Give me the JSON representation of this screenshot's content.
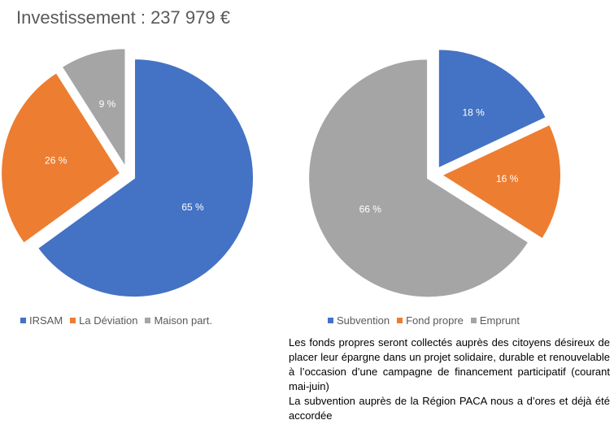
{
  "title": "Investissement : 237 979 €",
  "chart_data": [
    {
      "type": "pie",
      "categories": [
        "IRSAM",
        "La Déviation",
        "Maison part."
      ],
      "values": [
        65,
        26,
        9
      ],
      "labels": [
        "65 %",
        "26 %",
        "9 %"
      ],
      "colors": [
        "#4472C4",
        "#ED7D31",
        "#A5A5A5"
      ],
      "exploded": true,
      "legend_position": "bottom"
    },
    {
      "type": "pie",
      "categories": [
        "Subvention",
        "Fond propre",
        "Emprunt"
      ],
      "values": [
        18,
        16,
        66
      ],
      "labels": [
        "18 %",
        "16 %",
        "66 %"
      ],
      "colors": [
        "#4472C4",
        "#ED7D31",
        "#A5A5A5"
      ],
      "exploded": true,
      "legend_position": "bottom"
    }
  ],
  "note": {
    "paragraph1": "Les fonds propres seront collectés auprès des citoyens désireux de placer leur épargne dans un projet solidaire, durable et renouvelable à l’occasion d’une campagne de financement participatif (courant mai-juin)",
    "paragraph2": "La subvention auprès de la Région PACA nous a d’ores et déjà été accordée"
  }
}
